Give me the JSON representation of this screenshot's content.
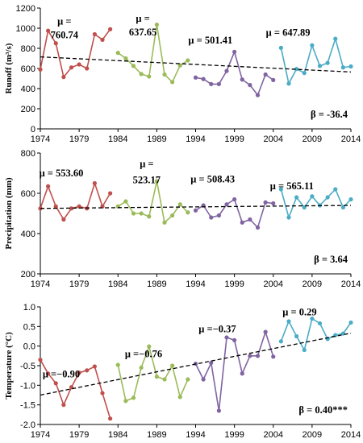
{
  "chart_data": [
    {
      "type": "line",
      "ylabel": "Runoff (m³/s)",
      "ylim": [
        0,
        1200
      ],
      "yticks": [
        0,
        200,
        400,
        600,
        800,
        1000,
        1200
      ],
      "xlim": [
        1974,
        2014
      ],
      "xticks": [
        1974,
        1979,
        1984,
        1989,
        1994,
        1999,
        2004,
        2009,
        2014
      ],
      "grid": false,
      "segments": [
        {
          "color": "#C0504D",
          "x": [
            1974,
            1975,
            1976,
            1977,
            1978,
            1979,
            1980,
            1981,
            1982,
            1983
          ],
          "values": [
            590,
            975,
            850,
            515,
            610,
            640,
            600,
            940,
            885,
            990
          ]
        },
        {
          "color": "#9BBB59",
          "x": [
            1984,
            1985,
            1986,
            1987,
            1988,
            1989,
            1990,
            1991,
            1992,
            1993
          ],
          "values": [
            755,
            700,
            625,
            545,
            520,
            1035,
            540,
            465,
            630,
            680
          ]
        },
        {
          "color": "#8064A2",
          "x": [
            1994,
            1995,
            1996,
            1997,
            1998,
            1999,
            2000,
            2001,
            2002,
            2003,
            2004
          ],
          "values": [
            510,
            495,
            445,
            445,
            575,
            765,
            490,
            435,
            335,
            540,
            485
          ]
        },
        {
          "color": "#4BACC6",
          "x": [
            2005,
            2006,
            2007,
            2008,
            2009,
            2010,
            2011,
            2012,
            2013,
            2014
          ],
          "values": [
            805,
            450,
            595,
            555,
            830,
            625,
            655,
            895,
            610,
            620
          ]
        }
      ],
      "trend": {
        "x": [
          1974,
          2014
        ],
        "values": [
          715,
          565
        ]
      },
      "annotations": [
        {
          "lines": [
            "μ =",
            "760.74"
          ],
          "x": 1977.1,
          "y": [
            1035,
            900
          ]
        },
        {
          "lines": [
            "μ =",
            "637.65"
          ],
          "x": 1987.2,
          "y": [
            1065,
            930
          ]
        },
        {
          "lines": [
            "μ = 501.41"
          ],
          "x": 1995.9,
          "y": [
            850
          ]
        },
        {
          "lines": [
            "μ = 647.89"
          ],
          "x": 2005.9,
          "y": [
            925
          ]
        }
      ],
      "beta": "β = -36.4"
    },
    {
      "type": "line",
      "ylabel": "Precipitation (mm)",
      "ylim": [
        200,
        800
      ],
      "yticks": [
        200,
        400,
        600,
        800
      ],
      "xlim": [
        1974,
        2014
      ],
      "xticks": [
        1974,
        1979,
        1984,
        1989,
        1994,
        1999,
        2004,
        2009,
        2014
      ],
      "grid": false,
      "segments": [
        {
          "color": "#C0504D",
          "x": [
            1974,
            1975,
            1976,
            1977,
            1978,
            1979,
            1980,
            1981,
            1982,
            1983
          ],
          "values": [
            525,
            635,
            535,
            470,
            525,
            535,
            525,
            650,
            535,
            600
          ]
        },
        {
          "color": "#9BBB59",
          "x": [
            1984,
            1985,
            1986,
            1987,
            1988,
            1989,
            1990,
            1991,
            1992,
            1993
          ],
          "values": [
            535,
            560,
            500,
            500,
            485,
            660,
            455,
            490,
            545,
            505
          ]
        },
        {
          "color": "#8064A2",
          "x": [
            1994,
            1995,
            1996,
            1997,
            1998,
            1999,
            2000,
            2001,
            2002,
            2003,
            2004
          ],
          "values": [
            515,
            540,
            480,
            490,
            545,
            570,
            455,
            470,
            430,
            555,
            550
          ]
        },
        {
          "color": "#4BACC6",
          "x": [
            2005,
            2006,
            2007,
            2008,
            2009,
            2010,
            2011,
            2012,
            2013,
            2014
          ],
          "values": [
            620,
            480,
            580,
            530,
            585,
            540,
            580,
            620,
            530,
            570
          ]
        }
      ],
      "trend": {
        "x": [
          1974,
          2014
        ],
        "values": [
          525,
          540
        ]
      },
      "annotations": [
        {
          "lines": [
            "μ = 553.60"
          ],
          "x": 1976.7,
          "y": [
            685
          ]
        },
        {
          "lines": [
            "μ =",
            "523.17"
          ],
          "x": 1987.7,
          "y": [
            730,
            650
          ]
        },
        {
          "lines": [
            "μ = 508.43"
          ],
          "x": 1996.2,
          "y": [
            655
          ]
        },
        {
          "lines": [
            "μ = 565.11"
          ],
          "x": 2006.4,
          "y": [
            620
          ]
        }
      ],
      "beta": "β = 3.64"
    },
    {
      "type": "line",
      "ylabel": "Temperature (°C)",
      "ylim": [
        -2.0,
        1.0
      ],
      "yticks": [
        -2.0,
        -1.5,
        -1.0,
        -0.5,
        0.0,
        0.5,
        1.0
      ],
      "xlim": [
        1974,
        2014
      ],
      "xticks": [
        1974,
        1979,
        1984,
        1989,
        1994,
        1999,
        2004,
        2009,
        2014
      ],
      "grid": false,
      "segments": [
        {
          "color": "#C0504D",
          "x": [
            1974,
            1975,
            1976,
            1977,
            1978,
            1979,
            1980,
            1981,
            1982,
            1983
          ],
          "values": [
            -0.35,
            -0.7,
            -0.95,
            -1.5,
            -1.05,
            -0.68,
            -0.62,
            -0.52,
            -1.2,
            -1.85
          ]
        },
        {
          "color": "#9BBB59",
          "x": [
            1984,
            1985,
            1986,
            1987,
            1988,
            1989,
            1990,
            1991,
            1992,
            1993
          ],
          "values": [
            -0.48,
            -1.4,
            -1.32,
            -0.55,
            -0.01,
            -0.78,
            -0.85,
            -0.5,
            -1.3,
            -0.85
          ]
        },
        {
          "color": "#8064A2",
          "x": [
            1994,
            1995,
            1996,
            1997,
            1998,
            1999,
            2000,
            2001,
            2002,
            2003,
            2004
          ],
          "values": [
            -0.45,
            -0.85,
            -0.43,
            -1.65,
            0.22,
            0.15,
            -0.7,
            -0.25,
            -0.25,
            0.36,
            -0.27
          ]
        },
        {
          "color": "#4BACC6",
          "x": [
            2005,
            2006,
            2007,
            2008,
            2009,
            2010,
            2011,
            2012,
            2013,
            2014
          ],
          "values": [
            0.12,
            0.63,
            0.25,
            -0.1,
            0.7,
            0.58,
            0.18,
            0.28,
            0.32,
            0.6
          ]
        }
      ],
      "trend": {
        "x": [
          1974,
          2014
        ],
        "values": [
          -1.25,
          0.33
        ]
      },
      "annotations": [
        {
          "lines": [
            "μ =−0.90"
          ],
          "x": 1976.7,
          "y": [
            -0.8
          ]
        },
        {
          "lines": [
            "μ =−0.76"
          ],
          "x": 1987.3,
          "y": [
            -0.28
          ]
        },
        {
          "lines": [
            "μ =−0.37"
          ],
          "x": 1996.8,
          "y": [
            0.35
          ]
        },
        {
          "lines": [
            "μ = 0.29"
          ],
          "x": 2007.4,
          "y": [
            0.78
          ]
        }
      ],
      "beta": "β = 0.40***"
    }
  ]
}
